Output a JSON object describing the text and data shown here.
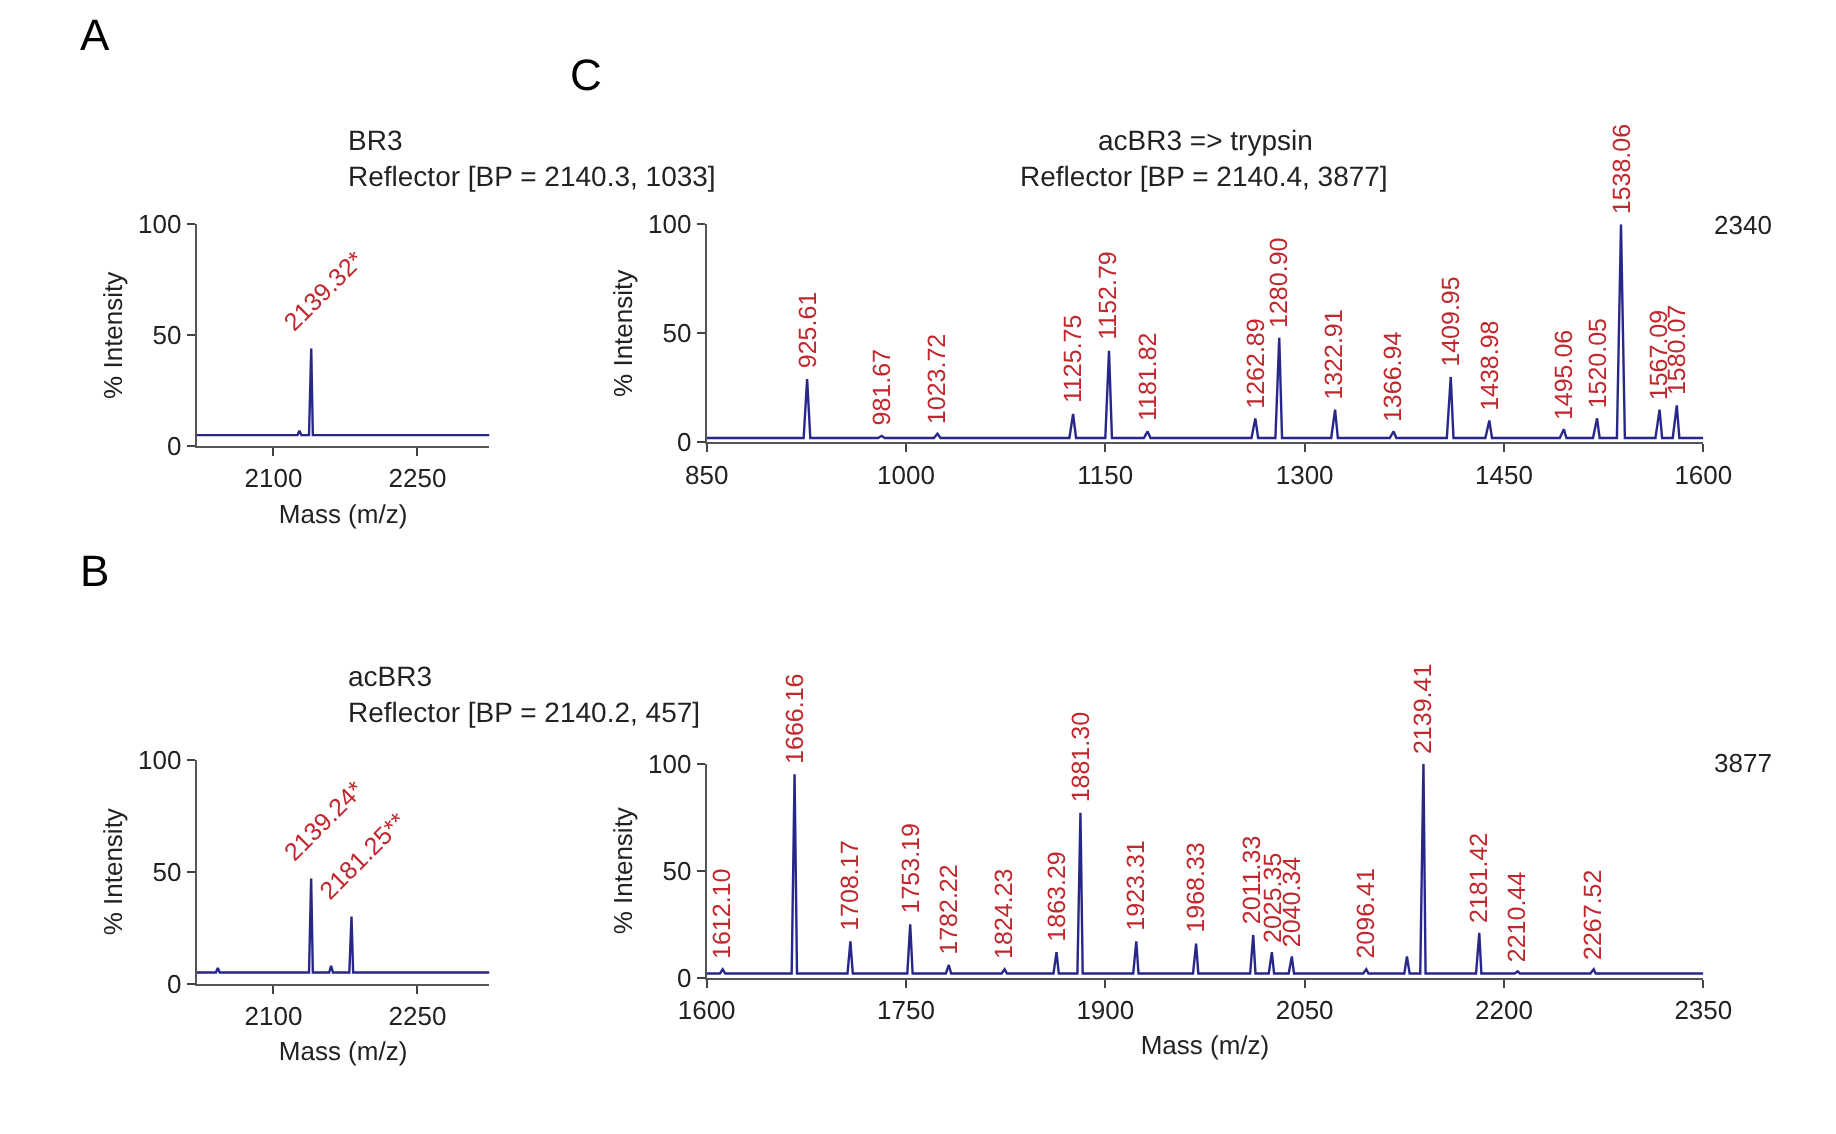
{
  "chart_data": [
    {
      "type": "line",
      "title": "BR3",
      "subtitle": "Reflector [BP = 2140.3, 1033]",
      "xlabel": "Mass (m/z)",
      "ylabel": "% Intensity",
      "xlim": [
        2020,
        2325
      ],
      "xticks": [
        2100,
        2250
      ],
      "ylim": [
        0,
        100
      ],
      "yticks": [
        0,
        50,
        100
      ],
      "marker": "none",
      "line_style": "solid",
      "series": [
        {
          "color": "#27278a",
          "x": [
            2020,
            2110,
            2125,
            2127,
            2129,
            2137,
            2139.32,
            2141,
            2200,
            2325
          ],
          "values": [
            5,
            5,
            5,
            7,
            5,
            5,
            44,
            5,
            5,
            5
          ]
        }
      ],
      "annotations": [
        "A",
        {
          "text": "2139.32*",
          "x": 2139.32,
          "y": 44
        }
      ]
    },
    {
      "type": "line",
      "title": "acBR3",
      "subtitle": "Reflector [BP = 2140.2, 457]",
      "xlabel": "Mass (m/z)",
      "ylabel": "% Intensity",
      "xlim": [
        2020,
        2325
      ],
      "xticks": [
        2100,
        2250
      ],
      "ylim": [
        0,
        100
      ],
      "yticks": [
        0,
        50,
        100
      ],
      "marker": "none",
      "line_style": "solid",
      "series": [
        {
          "color": "#27278a",
          "x": [
            2020,
            2040,
            2042,
            2044,
            2137,
            2139.24,
            2141,
            2158,
            2160,
            2162,
            2179,
            2181.25,
            2183,
            2325
          ],
          "values": [
            5,
            5,
            7,
            5,
            5,
            47,
            5,
            5,
            8,
            5,
            5,
            30,
            5,
            5
          ]
        }
      ],
      "annotations": [
        "B",
        {
          "text": "2139.24*",
          "x": 2139.24,
          "y": 47
        },
        {
          "text": "2181.25**",
          "x": 2181.25,
          "y": 30
        }
      ]
    },
    {
      "type": "line",
      "title": "acBR3 => trypsin",
      "subtitle": "Reflector [BP = 2140.4, 3877]",
      "ylabel": "% Intensity",
      "xlim": [
        850,
        1600
      ],
      "xticks": [
        850,
        1000,
        1150,
        1300,
        1450,
        1600
      ],
      "ylim": [
        0,
        100
      ],
      "yticks": [
        0,
        50,
        100
      ],
      "marker": "none",
      "line_style": "solid",
      "series": [
        {
          "color": "#27278a",
          "x": [
            850,
            923,
            925.61,
            928,
            979,
            981.67,
            984,
            1021,
            1023.72,
            1026,
            1123,
            1125.75,
            1128,
            1150,
            1152.79,
            1155,
            1179,
            1181.82,
            1184,
            1260,
            1262.89,
            1265,
            1278,
            1280.9,
            1283,
            1320,
            1322.91,
            1325,
            1364,
            1366.94,
            1369,
            1407,
            1409.95,
            1412,
            1436,
            1438.98,
            1441,
            1492,
            1495.06,
            1497,
            1517,
            1520.05,
            1522,
            1535,
            1538.06,
            1541,
            1564,
            1567.09,
            1569,
            1577,
            1580.07,
            1582,
            1600
          ],
          "values": [
            2,
            2,
            29,
            2,
            2,
            3,
            2,
            2,
            4,
            2,
            2,
            13,
            2,
            2,
            42,
            2,
            2,
            5,
            2,
            2,
            11,
            2,
            2,
            48,
            2,
            2,
            15,
            2,
            2,
            5,
            2,
            2,
            30,
            2,
            2,
            10,
            2,
            2,
            6,
            2,
            2,
            11,
            2,
            2,
            100,
            2,
            2,
            15,
            2,
            2,
            17,
            2,
            2
          ]
        }
      ],
      "annotations": [
        "C",
        "2340",
        {
          "text": "925.61",
          "x": 925.61,
          "y": 29
        },
        {
          "text": "981.67",
          "x": 981.67,
          "y": 3
        },
        {
          "text": "1023.72",
          "x": 1023.72,
          "y": 4
        },
        {
          "text": "1125.75",
          "x": 1125.75,
          "y": 13
        },
        {
          "text": "1152.79",
          "x": 1152.79,
          "y": 42
        },
        {
          "text": "1181.82",
          "x": 1181.82,
          "y": 5
        },
        {
          "text": "1262.89",
          "x": 1262.89,
          "y": 11
        },
        {
          "text": "1280.90",
          "x": 1280.9,
          "y": 48
        },
        {
          "text": "1322.91",
          "x": 1322.91,
          "y": 15
        },
        {
          "text": "1366.94",
          "x": 1366.94,
          "y": 5
        },
        {
          "text": "1409.95",
          "x": 1409.95,
          "y": 30
        },
        {
          "text": "1438.98",
          "x": 1438.98,
          "y": 10
        },
        {
          "text": "1495.06",
          "x": 1495.06,
          "y": 6
        },
        {
          "text": "1520.05",
          "x": 1520.05,
          "y": 11
        },
        {
          "text": "1538.06",
          "x": 1538.06,
          "y": 100
        },
        {
          "text": "1567.09",
          "x": 1567.09,
          "y": 15
        },
        {
          "text": "1580.07",
          "x": 1580.07,
          "y": 17
        }
      ]
    },
    {
      "type": "line",
      "xlabel": "Mass (m/z)",
      "ylabel": "% Intensity",
      "xlim": [
        1600,
        2350
      ],
      "xticks": [
        1600,
        1750,
        1900,
        2050,
        2200,
        2350
      ],
      "ylim": [
        0,
        100
      ],
      "yticks": [
        0,
        50,
        100
      ],
      "marker": "none",
      "line_style": "solid",
      "series": [
        {
          "color": "#27278a",
          "x": [
            1600,
            1610,
            1612.1,
            1614,
            1664,
            1666.16,
            1668,
            1706,
            1708.17,
            1710,
            1751,
            1753.19,
            1755,
            1780,
            1782.22,
            1784,
            1822,
            1824.23,
            1826,
            1861,
            1863.29,
            1865,
            1879,
            1881.3,
            1883,
            1921,
            1923.31,
            1925,
            1966,
            1968.33,
            1970,
            2009,
            2011.33,
            2013,
            2023,
            2025.35,
            2027,
            2038,
            2040.34,
            2042,
            2094,
            2096.41,
            2098,
            2125,
            2127,
            2129,
            2137,
            2139.41,
            2141,
            2179,
            2181.42,
            2183,
            2208,
            2210.44,
            2212,
            2265,
            2267.52,
            2269,
            2350
          ],
          "values": [
            2,
            2,
            4,
            2,
            2,
            95,
            2,
            2,
            17,
            2,
            2,
            25,
            2,
            2,
            6,
            2,
            2,
            4,
            2,
            2,
            12,
            2,
            2,
            77,
            2,
            2,
            17,
            2,
            2,
            16,
            2,
            2,
            20,
            2,
            2,
            12,
            2,
            2,
            10,
            2,
            2,
            4,
            2,
            2,
            10,
            2,
            2,
            100,
            2,
            2,
            21,
            2,
            2,
            3,
            2,
            2,
            4,
            2,
            2
          ]
        }
      ],
      "annotations": [
        "3877",
        {
          "text": "1612.10",
          "x": 1612.1,
          "y": 4
        },
        {
          "text": "1666.16",
          "x": 1666.16,
          "y": 95
        },
        {
          "text": "1708.17",
          "x": 1708.17,
          "y": 17
        },
        {
          "text": "1753.19",
          "x": 1753.19,
          "y": 25
        },
        {
          "text": "1782.22",
          "x": 1782.22,
          "y": 6
        },
        {
          "text": "1824.23",
          "x": 1824.23,
          "y": 4
        },
        {
          "text": "1863.29",
          "x": 1863.29,
          "y": 12
        },
        {
          "text": "1881.30",
          "x": 1881.3,
          "y": 77
        },
        {
          "text": "1923.31",
          "x": 1923.31,
          "y": 17
        },
        {
          "text": "1968.33",
          "x": 1968.33,
          "y": 16
        },
        {
          "text": "2011.33",
          "x": 2011.33,
          "y": 20
        },
        {
          "text": "2025.35",
          "x": 2025.35,
          "y": 12
        },
        {
          "text": "2040.34",
          "x": 2040.34,
          "y": 10
        },
        {
          "text": "2096.41",
          "x": 2096.41,
          "y": 4
        },
        {
          "text": "2139.41",
          "x": 2139.41,
          "y": 100
        },
        {
          "text": "2181.42",
          "x": 2181.42,
          "y": 21
        },
        {
          "text": "2210.44",
          "x": 2210.44,
          "y": 3
        },
        {
          "text": "2267.52",
          "x": 2267.52,
          "y": 4
        }
      ]
    }
  ]
}
